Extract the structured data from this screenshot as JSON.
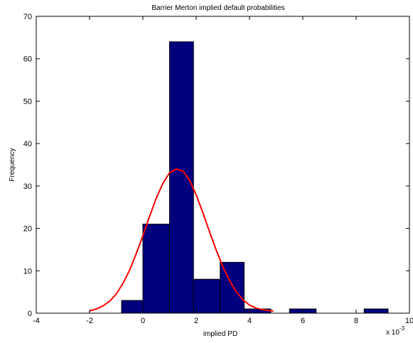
{
  "chart_data": {
    "type": "bar",
    "title": "Barrier Merton implied default probabilities",
    "xlabel": "implied PD",
    "ylabel": "Frequency",
    "x_scale_label": "x 10",
    "x_scale_exponent": "-3",
    "xlim": [
      -4,
      10
    ],
    "ylim": [
      0,
      70
    ],
    "x_ticks": [
      -4,
      -2,
      0,
      2,
      4,
      6,
      8,
      10
    ],
    "x_tick_labels": [
      "-4",
      "-2",
      "0",
      "2",
      "4",
      "6",
      "8",
      "10"
    ],
    "y_ticks": [
      0,
      10,
      20,
      30,
      40,
      50,
      60,
      70
    ],
    "y_tick_labels": [
      "0",
      "10",
      "20",
      "30",
      "40",
      "50",
      "60",
      "70"
    ],
    "grid": false,
    "bars": [
      {
        "x0": -0.8,
        "x1": 0.0,
        "value": 3
      },
      {
        "x0": 0.0,
        "x1": 1.0,
        "value": 21
      },
      {
        "x0": 1.0,
        "x1": 1.9,
        "value": 64
      },
      {
        "x0": 1.9,
        "x1": 2.9,
        "value": 8
      },
      {
        "x0": 2.9,
        "x1": 3.8,
        "value": 12
      },
      {
        "x0": 3.8,
        "x1": 4.8,
        "value": 1
      },
      {
        "x0": 5.5,
        "x1": 6.5,
        "value": 1
      },
      {
        "x0": 8.3,
        "x1": 9.2,
        "value": 1
      }
    ],
    "bar_color": "#00007f",
    "series": [
      {
        "type": "line",
        "color": "#ff0000",
        "x": [
          -2.0,
          -1.75,
          -1.5,
          -1.25,
          -1.0,
          -0.75,
          -0.5,
          -0.25,
          0.0,
          0.25,
          0.5,
          0.75,
          1.0,
          1.25,
          1.5,
          1.75,
          2.0,
          2.25,
          2.5,
          2.75,
          3.0,
          3.25,
          3.5,
          3.75,
          4.0,
          4.25,
          4.5,
          4.9
        ],
        "y": [
          0.5,
          1.0,
          1.7,
          2.8,
          4.5,
          7.0,
          10.1,
          14.0,
          18.3,
          22.8,
          27.1,
          30.6,
          33.1,
          34.0,
          33.5,
          31.4,
          27.9,
          23.7,
          19.2,
          14.9,
          11.0,
          7.7,
          5.1,
          3.2,
          1.9,
          1.2,
          0.8,
          0.5
        ]
      }
    ]
  }
}
